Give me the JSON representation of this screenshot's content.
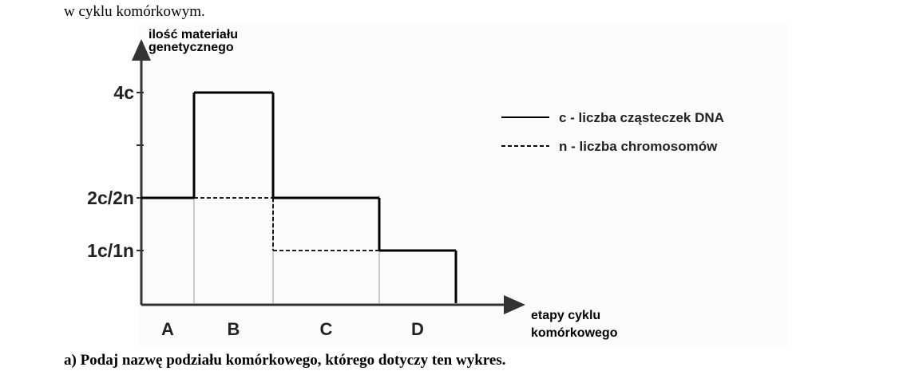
{
  "intro_text": "w cyklu komórkowym.",
  "question": "a)  Podaj nazwę podziału komórkowego, którego dotyczy ten wykres.",
  "chart_data": {
    "type": "step",
    "y_label": [
      "ilość materiału",
      "genetycznego"
    ],
    "x_label": [
      "etapy cyklu",
      "komórkowego"
    ],
    "categories": [
      "A",
      "B",
      "C",
      "D"
    ],
    "ylim": [
      0,
      5
    ],
    "yticks": [
      {
        "value": 1,
        "label": "1c/1n"
      },
      {
        "value": 2,
        "label": "2c/2n"
      },
      {
        "value": 3,
        "label": null
      },
      {
        "value": 4,
        "label": "4c"
      }
    ],
    "series": [
      {
        "name": "c - liczba cząsteczek DNA",
        "color": "#000000",
        "dash": "solid",
        "values": [
          2,
          4,
          2,
          1
        ]
      },
      {
        "name": "n - liczba chromosomów",
        "color": "#000000",
        "dash": "dashed",
        "values": [
          2,
          2,
          1,
          1
        ]
      }
    ]
  }
}
